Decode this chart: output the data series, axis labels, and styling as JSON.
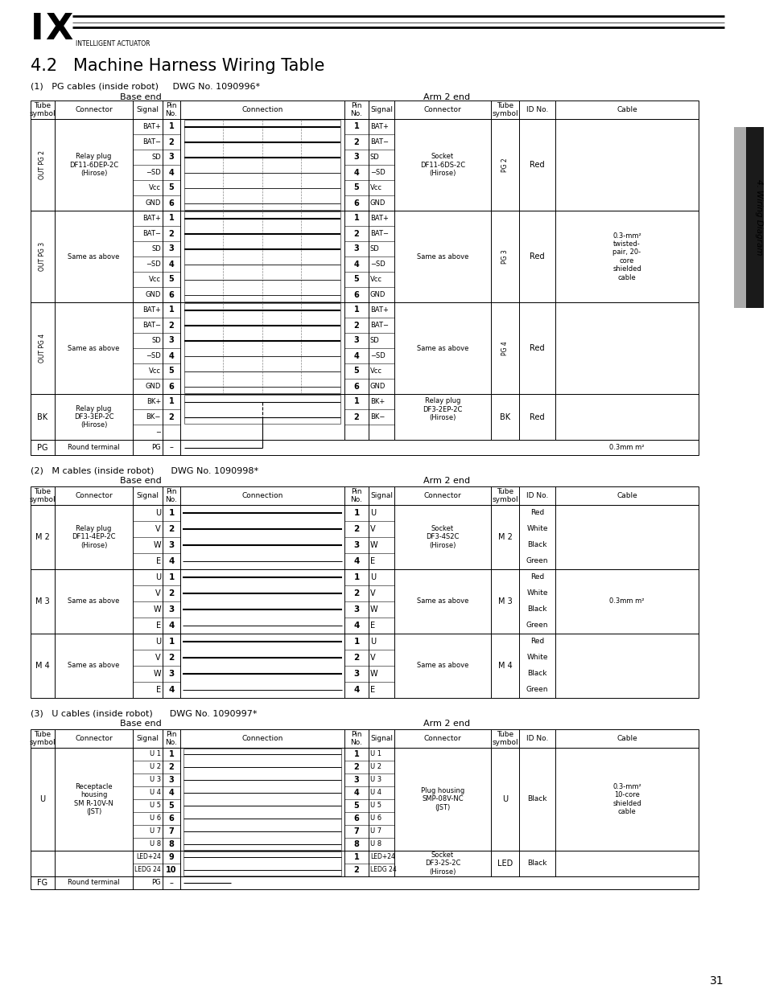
{
  "title": "4.2   Machine Harness Wiring Table",
  "s1": "(1)   PG cables (inside robot)     DWG No. 1090996*",
  "s2": "(2)   M cables (inside robot)      DWG No. 1090998*",
  "s3": "(3)   U cables (inside robot)      DWG No. 1090997*",
  "wiring_label": "4. Wiring Diagram",
  "page_num": "31",
  "pg_sigs": [
    "BAT+",
    "BAT−",
    "SD",
    "−SD",
    "Vcc",
    "GND"
  ],
  "bk_sigs_b": [
    "BK+",
    "BK−",
    "−"
  ],
  "bk_sigs_a": [
    "BK+",
    "BK−"
  ],
  "m_sigs": [
    "U",
    "V",
    "W",
    "E"
  ],
  "u_sigs": [
    "U 1",
    "U 2",
    "U 3",
    "U 4",
    "U 5",
    "U 6",
    "U 7",
    "U 8"
  ],
  "led_sigs": [
    "LED+24",
    "LEDG 24"
  ]
}
